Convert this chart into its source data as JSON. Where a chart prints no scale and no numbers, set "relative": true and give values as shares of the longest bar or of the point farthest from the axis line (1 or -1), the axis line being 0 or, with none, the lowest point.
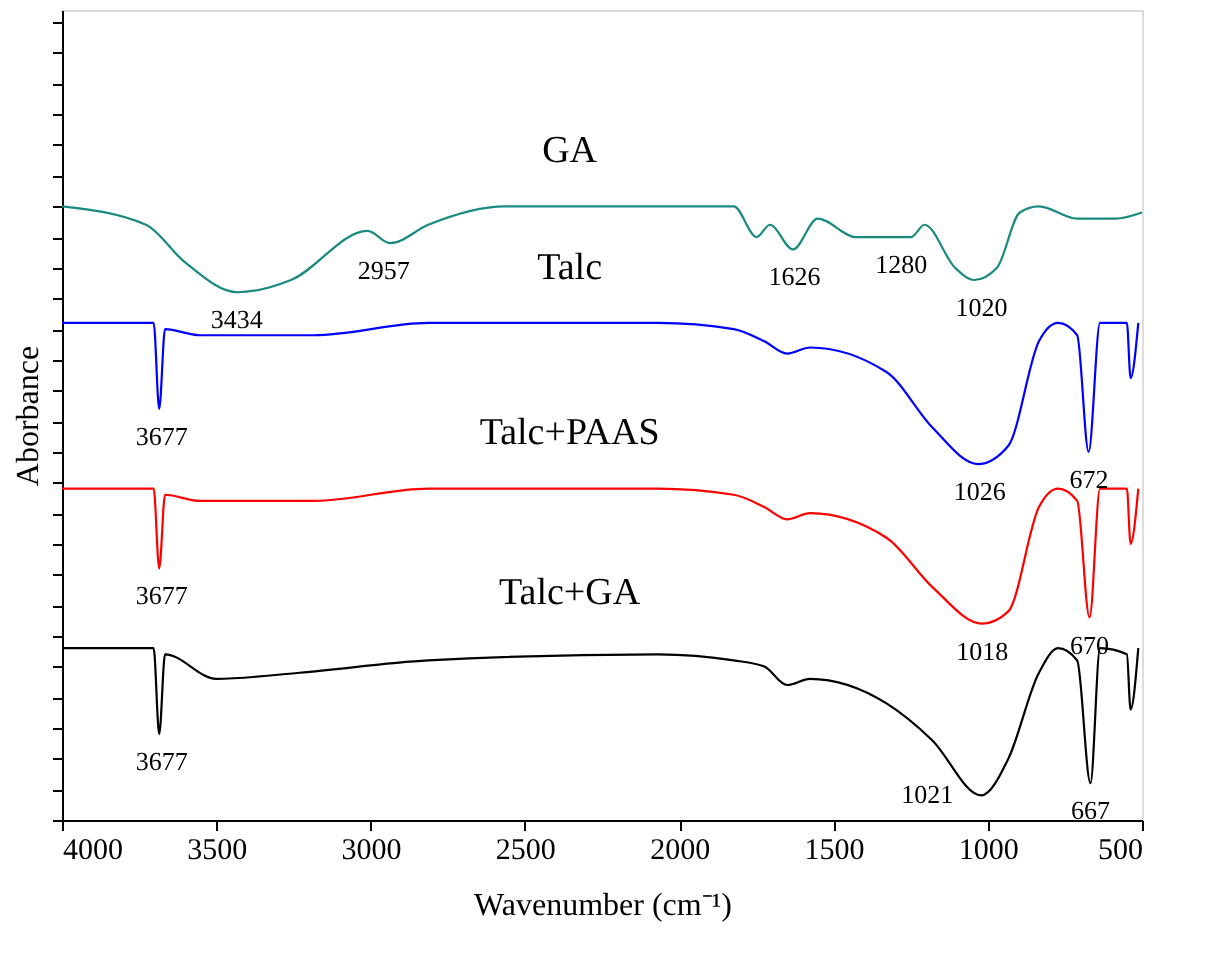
{
  "chart_data": {
    "type": "line",
    "relative": true,
    "xlabel": "Wavenumber (cm⁻¹)",
    "ylabel": "Aborbance",
    "xlim": [
      4000,
      500
    ],
    "xticks": [
      4000,
      3500,
      3000,
      2500,
      2000,
      1500,
      1000,
      500
    ],
    "grid": false,
    "series": [
      {
        "name": "GA",
        "color": "#1a8a80",
        "x": [
          4000,
          3728,
          3604,
          3431,
          3258,
          3010,
          2936,
          2813,
          2565,
          2070,
          1823,
          1749,
          1706,
          1631,
          1551,
          1427,
          1328,
          1248,
          1205,
          1106,
          1044,
          970,
          896,
          834,
          710,
          586,
          500
        ],
        "values": [
          1.0,
          0.97,
          0.91,
          0.86,
          0.88,
          0.96,
          0.94,
          0.97,
          1.0,
          1.0,
          1.0,
          0.95,
          0.97,
          0.93,
          0.98,
          0.95,
          0.95,
          0.95,
          0.97,
          0.9,
          0.88,
          0.9,
          0.99,
          1.0,
          0.98,
          0.98,
          0.99
        ]
      },
      {
        "name": "Talc",
        "color": "#0000ff",
        "x": [
          4000,
          3703,
          3685,
          3666,
          3555,
          3184,
          2813,
          2070,
          1823,
          1724,
          1650,
          1576,
          1328,
          1180,
          1032,
          933,
          834,
          772,
          710,
          673,
          636,
          549,
          537,
          512
        ],
        "values": [
          0.81,
          0.81,
          0.67,
          0.8,
          0.79,
          0.79,
          0.81,
          0.81,
          0.8,
          0.78,
          0.76,
          0.77,
          0.73,
          0.64,
          0.58,
          0.61,
          0.78,
          0.81,
          0.79,
          0.6,
          0.81,
          0.81,
          0.72,
          0.81
        ]
      },
      {
        "name": "Talc+PAAS",
        "color": "#ff0000",
        "x": [
          4000,
          3703,
          3685,
          3666,
          3555,
          3184,
          2813,
          2070,
          1823,
          1724,
          1650,
          1576,
          1328,
          1180,
          1018,
          933,
          834,
          772,
          710,
          670,
          636,
          549,
          537,
          512
        ],
        "values": [
          0.54,
          0.54,
          0.41,
          0.53,
          0.52,
          0.52,
          0.54,
          0.54,
          0.53,
          0.51,
          0.49,
          0.5,
          0.46,
          0.38,
          0.32,
          0.34,
          0.51,
          0.54,
          0.52,
          0.33,
          0.54,
          0.54,
          0.45,
          0.54
        ]
      },
      {
        "name": "Talc+GA",
        "color": "#000000",
        "x": [
          4000,
          3703,
          3685,
          3666,
          3500,
          3230,
          2813,
          2070,
          1823,
          1724,
          1650,
          1576,
          1328,
          1180,
          1021,
          933,
          834,
          772,
          710,
          667,
          636,
          549,
          537,
          512
        ],
        "values": [
          0.28,
          0.28,
          0.14,
          0.27,
          0.23,
          0.24,
          0.26,
          0.27,
          0.26,
          0.25,
          0.22,
          0.23,
          0.19,
          0.13,
          0.04,
          0.1,
          0.24,
          0.28,
          0.26,
          0.06,
          0.28,
          0.27,
          0.18,
          0.28
        ]
      }
    ],
    "annotations": [
      {
        "text": "3434",
        "x": 3434,
        "y": 0.86
      },
      {
        "text": "2957",
        "x": 2957,
        "y": 0.94
      },
      {
        "text": "1626",
        "x": 1626,
        "y": 0.93
      },
      {
        "text": "1280",
        "x": 1280,
        "y": 0.95
      },
      {
        "text": "1020",
        "x": 1020,
        "y": 0.88
      },
      {
        "text": "3677",
        "x": 3677,
        "y": 0.67
      },
      {
        "text": "1026",
        "x": 1026,
        "y": 0.58
      },
      {
        "text": "672",
        "x": 672,
        "y": 0.6
      },
      {
        "text": "3677",
        "x": 3677,
        "y": 0.41
      },
      {
        "text": "1018",
        "x": 1018,
        "y": 0.32
      },
      {
        "text": "670",
        "x": 670,
        "y": 0.33
      },
      {
        "text": "3677",
        "x": 3677,
        "y": 0.14
      },
      {
        "text": "1021",
        "x": 1021,
        "y": 0.04
      },
      {
        "text": "667",
        "x": 667,
        "y": 0.06
      }
    ]
  }
}
